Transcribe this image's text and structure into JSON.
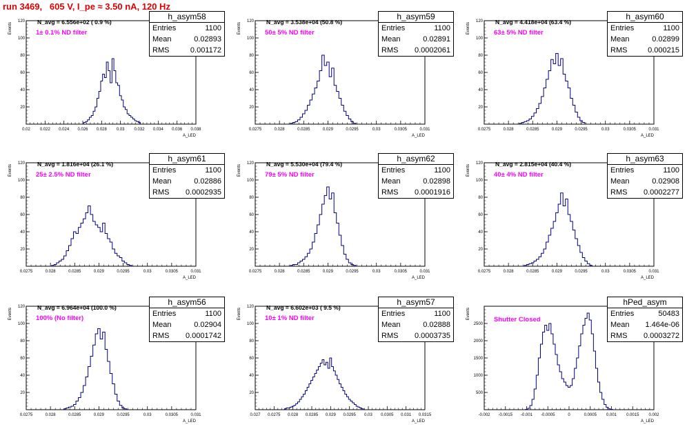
{
  "header": {
    "title": "run 3469,   605 V, I_pe ≈ 3.50 nA, 120 Hz"
  },
  "style": {
    "title_color": "#e00000",
    "hist_color": "#000080",
    "filter_label_color": "#ff00ff"
  },
  "stats_labels": {
    "entries": "Entries",
    "mean": "Mean",
    "rms": "RMS"
  },
  "y_axis_label": "Events",
  "x_axis_label": "A_LED",
  "panels": [
    {
      "name": "h_asym58",
      "navg_label": "N_avg = 6.556e+02 ( 0.9 %)",
      "filter_label": "1± 0.1% ND filter",
      "stats": {
        "entries": "1100",
        "mean": "0.02893",
        "rms": "0.001172"
      }
    },
    {
      "name": "h_asym59",
      "navg_label": "N_avg = 3.538e+04 (50.8 %)",
      "filter_label": "50± 5% ND filter",
      "stats": {
        "entries": "1100",
        "mean": "0.02891",
        "rms": "0.0002061"
      }
    },
    {
      "name": "h_asym60",
      "navg_label": "N_avg = 4.418e+04 (63.4 %)",
      "filter_label": "63± 5% ND filter",
      "stats": {
        "entries": "1100",
        "mean": "0.02899",
        "rms": "0.000215"
      }
    },
    {
      "name": "h_asym61",
      "navg_label": "N_avg = 1.816e+04 (26.1 %)",
      "filter_label": "25± 2.5% ND filter",
      "stats": {
        "entries": "1100",
        "mean": "0.02886",
        "rms": "0.0002935"
      }
    },
    {
      "name": "h_asym62",
      "navg_label": "N_avg = 5.530e+04 (79.4 %)",
      "filter_label": "79± 5% ND filter",
      "stats": {
        "entries": "1100",
        "mean": "0.02898",
        "rms": "0.0001916"
      }
    },
    {
      "name": "h_asym63",
      "navg_label": "N_avg = 2.815e+04 (40.4 %)",
      "filter_label": "40± 4% ND filter",
      "stats": {
        "entries": "1100",
        "mean": "0.02908",
        "rms": "0.0002277"
      }
    },
    {
      "name": "h_asym56",
      "navg_label": "N_avg = 6.964e+04 (100.0 %)",
      "filter_label": "100% (No filter)",
      "stats": {
        "entries": "1100",
        "mean": "0.02904",
        "rms": "0.0001742"
      }
    },
    {
      "name": "h_asym57",
      "navg_label": "N_avg = 6.602e+03 ( 9.5 %)",
      "filter_label": "10± 1% ND filter",
      "stats": {
        "entries": "1100",
        "mean": "0.02888",
        "rms": "0.0003735"
      }
    },
    {
      "name": "hPed_asym",
      "navg_label": "",
      "filter_label": "Shutter Closed",
      "stats": {
        "entries": "50483",
        "mean": "1.464e-06",
        "rms": "0.0003272"
      }
    }
  ],
  "chart_data": [
    {
      "type": "bar",
      "title": "h_asym58",
      "ylabel": "Events",
      "xlabel": "A_LED",
      "xlim": [
        0.02,
        0.038
      ],
      "ylim": [
        0,
        120
      ],
      "xticks": [
        "0.02",
        "0.022",
        "0.024",
        "0.026",
        "0.028",
        "0.03",
        "0.032",
        "0.034",
        "0.036",
        "0.038"
      ],
      "yticks": [
        "20",
        "40",
        "60",
        "80",
        "100",
        "120"
      ],
      "x": [
        0.0262,
        0.0264,
        0.0266,
        0.0268,
        0.027,
        0.0272,
        0.0274,
        0.0276,
        0.0278,
        0.028,
        0.0282,
        0.0284,
        0.0286,
        0.0288,
        0.029,
        0.0292,
        0.0294,
        0.0296,
        0.0298,
        0.03,
        0.0302,
        0.0304,
        0.0306,
        0.0308,
        0.031,
        0.0312,
        0.0314,
        0.0316,
        0.0318,
        0.032
      ],
      "values": [
        2,
        3,
        5,
        8,
        10,
        15,
        20,
        30,
        38,
        50,
        58,
        54,
        72,
        62,
        48,
        76,
        62,
        48,
        45,
        33,
        28,
        20,
        17,
        12,
        10,
        8,
        6,
        4,
        3,
        2
      ]
    },
    {
      "type": "bar",
      "title": "h_asym59",
      "ylabel": "Events",
      "xlabel": "A_LED",
      "xlim": [
        0.0275,
        0.031
      ],
      "ylim": [
        0,
        120
      ],
      "xticks": [
        "0.0275",
        "0.028",
        "0.0285",
        "0.029",
        "0.0295",
        "0.03",
        "0.0305",
        "0.031"
      ],
      "yticks": [
        "20",
        "40",
        "60",
        "80",
        "100",
        "120"
      ],
      "x": [
        0.02825,
        0.0283,
        0.02835,
        0.0284,
        0.02845,
        0.0285,
        0.02855,
        0.0286,
        0.02865,
        0.0287,
        0.02875,
        0.0288,
        0.02885,
        0.0289,
        0.02895,
        0.029,
        0.02905,
        0.0291,
        0.02915,
        0.0292,
        0.02925,
        0.0293,
        0.02935,
        0.0294,
        0.02945,
        0.0295,
        0.02955
      ],
      "values": [
        1,
        2,
        3,
        5,
        8,
        12,
        16,
        22,
        28,
        35,
        42,
        50,
        62,
        80,
        68,
        72,
        55,
        65,
        45,
        38,
        30,
        22,
        15,
        10,
        6,
        3,
        1
      ]
    },
    {
      "type": "bar",
      "title": "h_asym60",
      "ylabel": "Events",
      "xlabel": "A_LED",
      "xlim": [
        0.0275,
        0.031
      ],
      "ylim": [
        0,
        120
      ],
      "xticks": [
        "0.0275",
        "0.028",
        "0.0285",
        "0.029",
        "0.0295",
        "0.03",
        "0.0305",
        "0.031"
      ],
      "yticks": [
        "20",
        "40",
        "60",
        "80",
        "100",
        "120"
      ],
      "x": [
        0.02825,
        0.0283,
        0.02835,
        0.0284,
        0.02845,
        0.0285,
        0.02855,
        0.0286,
        0.02865,
        0.0287,
        0.02875,
        0.0288,
        0.02885,
        0.0289,
        0.02895,
        0.029,
        0.02905,
        0.0291,
        0.02915,
        0.0292,
        0.02925,
        0.0293,
        0.02935,
        0.0294,
        0.02945,
        0.0295,
        0.02955
      ],
      "values": [
        1,
        2,
        3,
        4,
        6,
        9,
        13,
        18,
        24,
        32,
        42,
        52,
        62,
        75,
        70,
        82,
        68,
        76,
        58,
        50,
        42,
        30,
        22,
        14,
        8,
        4,
        2
      ]
    },
    {
      "type": "bar",
      "title": "h_asym61",
      "ylabel": "Events",
      "xlabel": "A_LED",
      "xlim": [
        0.0275,
        0.031
      ],
      "ylim": [
        0,
        120
      ],
      "xticks": [
        "0.0275",
        "0.028",
        "0.0285",
        "0.029",
        "0.0295",
        "0.03",
        "0.0305",
        "0.031"
      ],
      "yticks": [
        "20",
        "40",
        "60",
        "80",
        "100",
        "120"
      ],
      "x": [
        0.02805,
        0.0281,
        0.02815,
        0.0282,
        0.02825,
        0.0283,
        0.02835,
        0.0284,
        0.02845,
        0.0285,
        0.02855,
        0.0286,
        0.02865,
        0.0287,
        0.02875,
        0.0288,
        0.02885,
        0.0289,
        0.02895,
        0.029,
        0.02905,
        0.0291,
        0.02915,
        0.0292,
        0.02925,
        0.0293,
        0.02935,
        0.0294,
        0.02945,
        0.0295,
        0.02955,
        0.0296,
        0.02965
      ],
      "values": [
        1,
        2,
        4,
        6,
        8,
        12,
        18,
        24,
        32,
        40,
        38,
        45,
        50,
        55,
        62,
        70,
        60,
        52,
        48,
        45,
        40,
        50,
        38,
        32,
        28,
        20,
        15,
        12,
        10,
        6,
        4,
        2,
        1
      ]
    },
    {
      "type": "bar",
      "title": "h_asym62",
      "ylabel": "Events",
      "xlabel": "A_LED",
      "xlim": [
        0.0275,
        0.031
      ],
      "ylim": [
        0,
        120
      ],
      "xticks": [
        "0.0275",
        "0.028",
        "0.0285",
        "0.029",
        "0.0295",
        "0.03",
        "0.0305",
        "0.031"
      ],
      "yticks": [
        "20",
        "40",
        "60",
        "80",
        "100",
        "120"
      ],
      "x": [
        0.02825,
        0.0283,
        0.02835,
        0.0284,
        0.02845,
        0.0285,
        0.02855,
        0.0286,
        0.02865,
        0.0287,
        0.02875,
        0.0288,
        0.02885,
        0.0289,
        0.02895,
        0.029,
        0.02905,
        0.0291,
        0.02915,
        0.0292,
        0.02925,
        0.0293,
        0.02935,
        0.0294,
        0.02945,
        0.0295,
        0.02955
      ],
      "values": [
        1,
        2,
        2,
        4,
        6,
        8,
        11,
        15,
        20,
        28,
        38,
        48,
        60,
        72,
        82,
        92,
        78,
        85,
        62,
        50,
        36,
        24,
        14,
        8,
        4,
        2,
        1
      ]
    },
    {
      "type": "bar",
      "title": "h_asym63",
      "ylabel": "Events",
      "xlabel": "A_LED",
      "xlim": [
        0.0275,
        0.031
      ],
      "ylim": [
        0,
        120
      ],
      "xticks": [
        "0.0275",
        "0.028",
        "0.0285",
        "0.029",
        "0.0295",
        "0.03",
        "0.0305",
        "0.031"
      ],
      "yticks": [
        "20",
        "40",
        "60",
        "80",
        "100",
        "120"
      ],
      "x": [
        0.02835,
        0.0284,
        0.02845,
        0.0285,
        0.02855,
        0.0286,
        0.02865,
        0.0287,
        0.02875,
        0.0288,
        0.02885,
        0.0289,
        0.02895,
        0.029,
        0.02905,
        0.0291,
        0.02915,
        0.0292,
        0.02925,
        0.0293,
        0.02935,
        0.0294,
        0.02945,
        0.0295,
        0.02955,
        0.0296,
        0.02965,
        0.0297
      ],
      "values": [
        1,
        2,
        3,
        4,
        6,
        8,
        11,
        15,
        20,
        28,
        36,
        44,
        52,
        62,
        72,
        85,
        70,
        78,
        60,
        52,
        42,
        32,
        24,
        16,
        10,
        6,
        3,
        1
      ]
    },
    {
      "type": "bar",
      "title": "h_asym56",
      "ylabel": "Events",
      "xlabel": "A_LED",
      "xlim": [
        0.0275,
        0.031
      ],
      "ylim": [
        0,
        120
      ],
      "xticks": [
        "0.0275",
        "0.028",
        "0.0285",
        "0.029",
        "0.0295",
        "0.03",
        "0.0305",
        "0.031"
      ],
      "yticks": [
        "20",
        "40",
        "60",
        "80",
        "100",
        "120"
      ],
      "x": [
        0.0283,
        0.02835,
        0.0284,
        0.02845,
        0.0285,
        0.02855,
        0.0286,
        0.02865,
        0.0287,
        0.02875,
        0.0288,
        0.02885,
        0.0289,
        0.02895,
        0.029,
        0.02905,
        0.0291,
        0.02915,
        0.0292,
        0.02925,
        0.0293,
        0.02935,
        0.0294,
        0.02945,
        0.0295,
        0.02955
      ],
      "values": [
        1,
        2,
        3,
        4,
        6,
        10,
        14,
        20,
        28,
        38,
        50,
        62,
        75,
        88,
        94,
        82,
        90,
        70,
        56,
        42,
        30,
        18,
        10,
        5,
        2,
        1
      ]
    },
    {
      "type": "bar",
      "title": "h_asym57",
      "ylabel": "Events",
      "xlabel": "A_LED",
      "xlim": [
        0.027,
        0.0315
      ],
      "ylim": [
        0,
        120
      ],
      "xticks": [
        "0.027",
        "0.0275",
        "0.028",
        "0.0285",
        "0.029",
        "0.0295",
        "0.03",
        "0.0305",
        "0.031",
        "0.0315"
      ],
      "yticks": [
        "20",
        "40",
        "60",
        "80",
        "100",
        "120"
      ],
      "x": [
        0.0278,
        0.02785,
        0.0279,
        0.02795,
        0.028,
        0.02805,
        0.0281,
        0.02815,
        0.0282,
        0.02825,
        0.0283,
        0.02835,
        0.0284,
        0.02845,
        0.0285,
        0.02855,
        0.0286,
        0.02865,
        0.0287,
        0.02875,
        0.0288,
        0.02885,
        0.0289,
        0.02895,
        0.029,
        0.02905,
        0.0291,
        0.02915,
        0.0292,
        0.02925,
        0.0293,
        0.02935,
        0.0294,
        0.02945,
        0.0295,
        0.02955,
        0.0296,
        0.02965,
        0.0297,
        0.02975,
        0.0298,
        0.02985
      ],
      "values": [
        1,
        2,
        2,
        3,
        4,
        5,
        7,
        9,
        12,
        15,
        18,
        22,
        26,
        30,
        34,
        38,
        42,
        46,
        50,
        54,
        58,
        52,
        55,
        48,
        60,
        50,
        45,
        40,
        35,
        30,
        26,
        22,
        18,
        15,
        12,
        10,
        8,
        6,
        4,
        3,
        2,
        1
      ]
    },
    {
      "type": "bar",
      "title": "hPed_asym",
      "ylabel": "Events",
      "xlabel": "A_LED",
      "xlim": [
        -0.002,
        0.002
      ],
      "ylim": [
        0,
        3000
      ],
      "xticks": [
        "-0.002",
        "-0.0015",
        "-0.001",
        "-0.0005",
        "0",
        "0.0005",
        "0.001",
        "0.0015",
        "0.002"
      ],
      "yticks": [
        "500",
        "1000",
        "1500",
        "2000",
        "2500"
      ],
      "x": [
        -0.001,
        -0.00095,
        -0.0009,
        -0.00085,
        -0.0008,
        -0.00075,
        -0.0007,
        -0.00065,
        -0.0006,
        -0.00055,
        -0.0005,
        -0.00045,
        -0.0004,
        -0.00035,
        -0.0003,
        -0.00025,
        -0.0002,
        -0.00015,
        -0.0001,
        -5e-05,
        0.0,
        5e-05,
        0.0001,
        0.00015,
        0.0002,
        0.00025,
        0.0003,
        0.00035,
        0.0004,
        0.00045,
        0.0005,
        0.00055,
        0.0006,
        0.00065,
        0.0007,
        0.00075,
        0.0008,
        0.00085,
        0.0009,
        0.00095,
        0.001
      ],
      "values": [
        10,
        40,
        120,
        300,
        600,
        1000,
        1500,
        1900,
        2250,
        2450,
        2300,
        2500,
        2200,
        1900,
        1600,
        1300,
        1100,
        900,
        800,
        700,
        650,
        700,
        900,
        1200,
        1500,
        1850,
        2200,
        2450,
        2650,
        2800,
        2600,
        2200,
        1700,
        1200,
        800,
        500,
        300,
        150,
        70,
        25,
        10
      ]
    }
  ]
}
